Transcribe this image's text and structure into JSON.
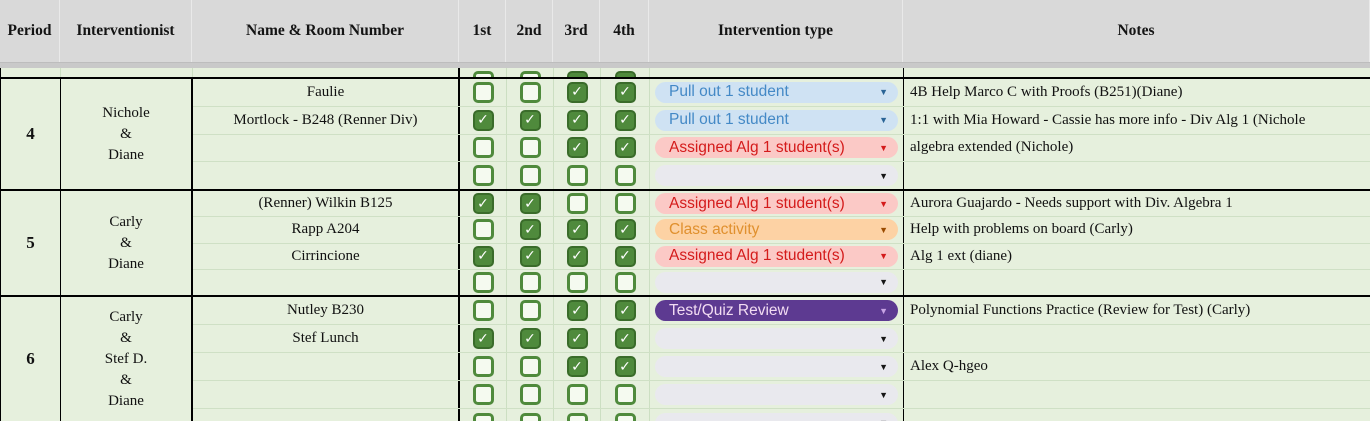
{
  "header": {
    "columns": [
      "Period",
      "Interventionist",
      "Name & Room Number",
      "1st",
      "2nd",
      "3rd",
      "4th",
      "Intervention type",
      "Notes"
    ]
  },
  "icons": {
    "check": "✓",
    "dropdown_arrow": "▼"
  },
  "colors": {
    "header_bg": "#d9d9d9",
    "row_bg": "#e6f0dd",
    "checkbox_green": "#4f8a3c",
    "block_border": "#000000"
  },
  "dropdown_types": {
    "pull_out_1": {
      "label": "Pull out 1 student",
      "bg": "#cfe2f3",
      "fg": "#4489c6",
      "arrow": "#2a6496"
    },
    "assigned_alg1": {
      "label": "Assigned Alg 1 student(s)",
      "bg": "#fbc9c6",
      "fg": "#d41b1b",
      "arrow": "#d41b1b"
    },
    "class_activity": {
      "label": "Class activity",
      "bg": "#fdd2a4",
      "fg": "#e0902e",
      "arrow": "#9a4b00"
    },
    "test_quiz": {
      "label": "Test/Quiz Review",
      "bg": "#5d3a91",
      "fg": "#f2dcf2",
      "arrow": "#c7a3e4"
    },
    "empty": {
      "label": "",
      "bg": "#e9e9ee",
      "fg": "#111111",
      "arrow": "#161616"
    }
  },
  "partial_top_row": {
    "checks": [
      0,
      0,
      1,
      1
    ]
  },
  "blocks": [
    {
      "period": "4",
      "interventionist_lines": [
        "Nichole",
        "&",
        "Diane"
      ],
      "rows": [
        {
          "name": "Faulie",
          "checks": [
            0,
            0,
            1,
            1
          ],
          "type": "pull_out_1",
          "note": "4B Help Marco C with Proofs (B251)(Diane)"
        },
        {
          "name": "Mortlock - B248 (Renner Div)",
          "checks": [
            1,
            1,
            1,
            1
          ],
          "type": "pull_out_1",
          "note": "1:1 with Mia Howard - Cassie has more info - Div Alg 1 (Nichole"
        },
        {
          "name": "",
          "checks": [
            0,
            0,
            1,
            1
          ],
          "type": "assigned_alg1",
          "note": "algebra extended (Nichole)"
        },
        {
          "name": "",
          "checks": [
            0,
            0,
            0,
            0
          ],
          "type": "empty",
          "note": ""
        }
      ]
    },
    {
      "period": "5",
      "interventionist_lines": [
        "Carly",
        "&",
        "Diane"
      ],
      "rows": [
        {
          "name": "(Renner) Wilkin B125",
          "checks": [
            1,
            1,
            0,
            0
          ],
          "type": "assigned_alg1",
          "note": "Aurora Guajardo - Needs support with Div. Algebra 1"
        },
        {
          "name": "Rapp A204",
          "checks": [
            0,
            1,
            1,
            1
          ],
          "type": "class_activity",
          "note": "Help with problems on board (Carly)"
        },
        {
          "name": "Cirrincione",
          "checks": [
            1,
            1,
            1,
            1
          ],
          "type": "assigned_alg1",
          "note": "Alg 1 ext (diane)"
        },
        {
          "name": "",
          "checks": [
            0,
            0,
            0,
            0
          ],
          "type": "empty",
          "note": ""
        }
      ]
    },
    {
      "period": "6",
      "interventionist_lines": [
        "Carly",
        "&",
        "Stef D.",
        "&",
        "Diane"
      ],
      "rows": [
        {
          "name": "Nutley B230",
          "checks": [
            0,
            0,
            1,
            1
          ],
          "type": "test_quiz",
          "note": "Polynomial Functions Practice (Review for Test) (Carly)"
        },
        {
          "name": "Stef Lunch",
          "checks": [
            1,
            1,
            1,
            1
          ],
          "type": "empty",
          "note": ""
        },
        {
          "name": "",
          "checks": [
            0,
            0,
            1,
            1
          ],
          "type": "empty",
          "note": "Alex Q-hgeo"
        },
        {
          "name": "",
          "checks": [
            0,
            0,
            0,
            0
          ],
          "type": "empty",
          "note": ""
        },
        {
          "name": "",
          "checks": [
            0,
            0,
            0,
            0
          ],
          "type": "empty",
          "note": ""
        }
      ]
    }
  ]
}
